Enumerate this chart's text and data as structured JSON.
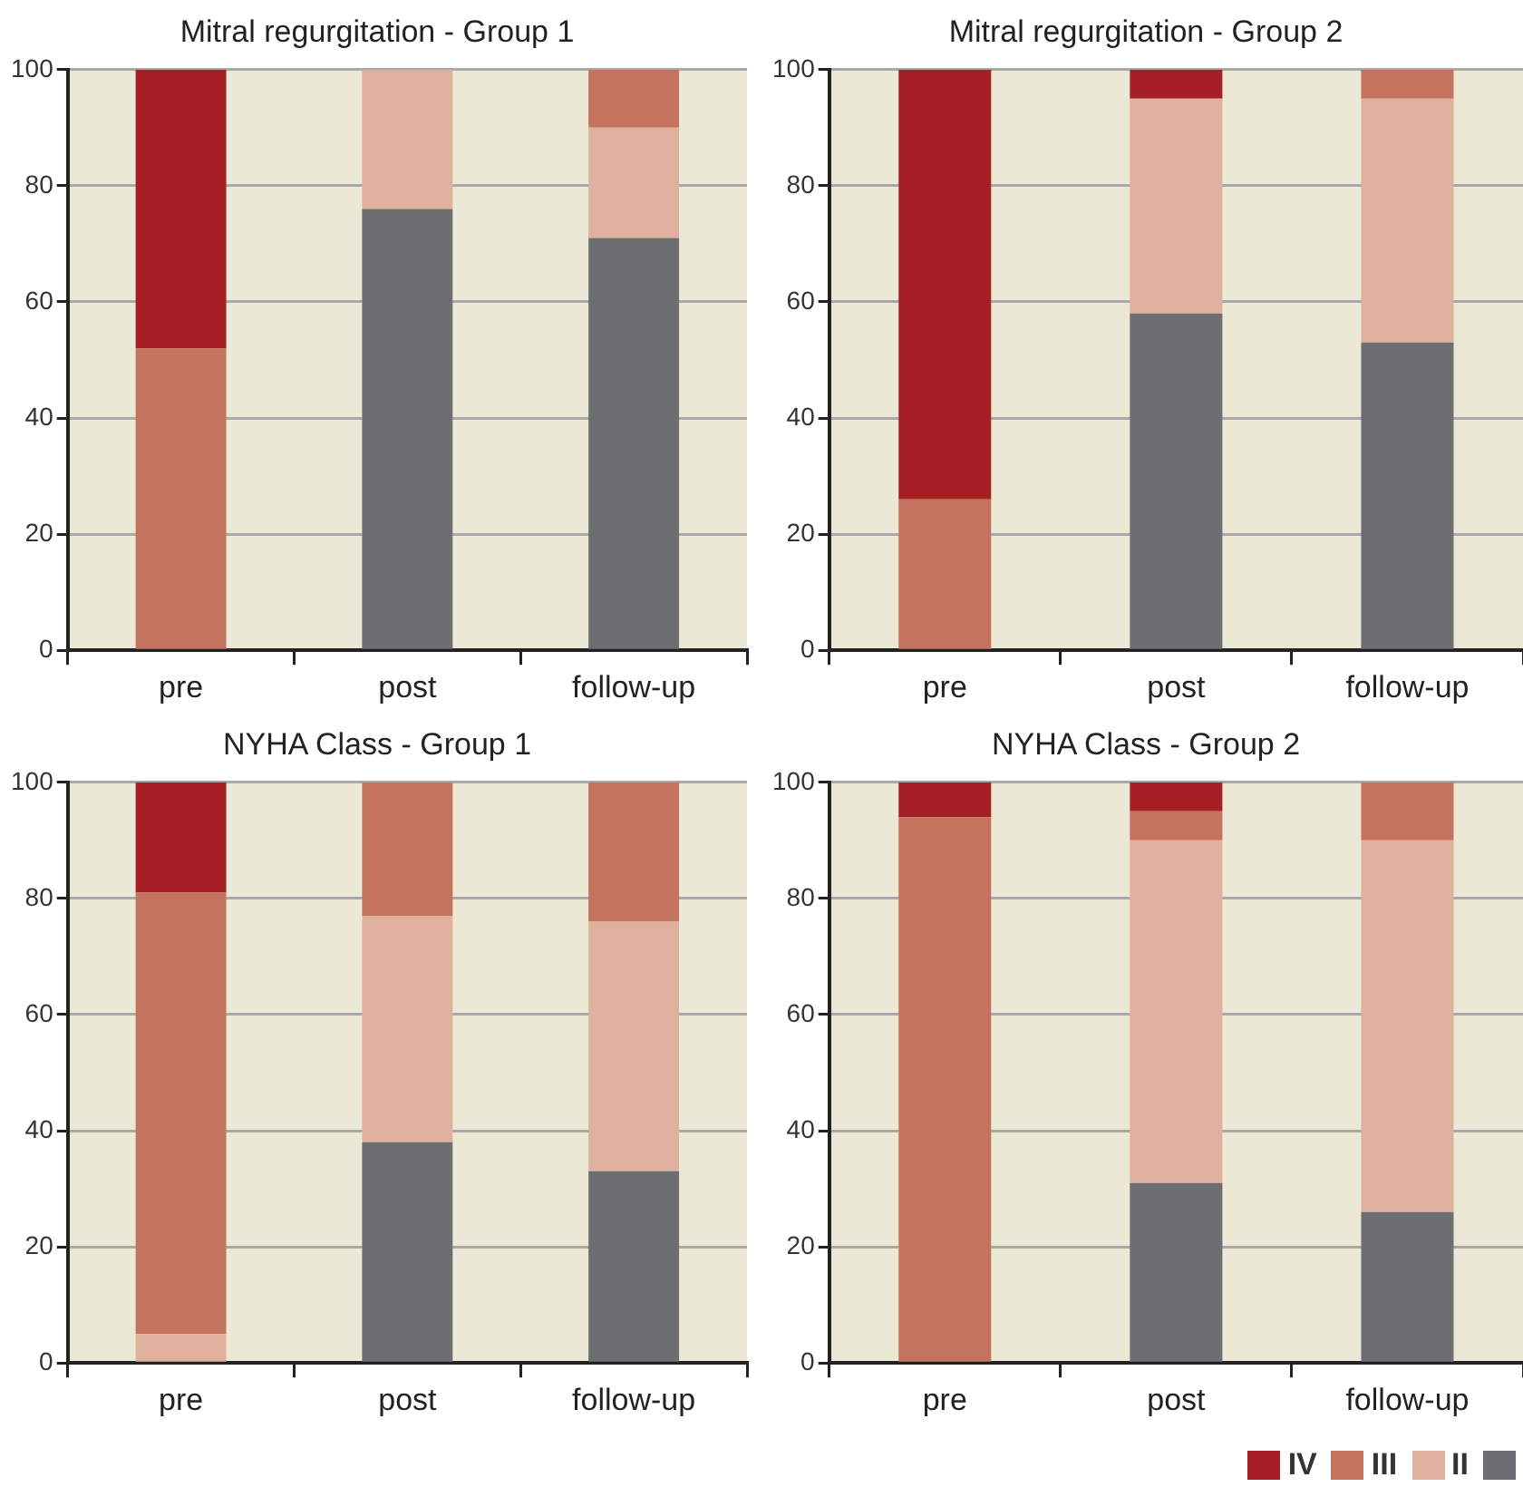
{
  "chart_data": [
    {
      "type": "bar",
      "title": "Mitral regurgitation - Group 1",
      "categories": [
        "pre",
        "post",
        "follow-up"
      ],
      "stacked": true,
      "ylim": [
        0,
        100
      ],
      "yticks": [
        0,
        20,
        40,
        60,
        80,
        100
      ],
      "grid": "y",
      "series": [
        {
          "color": "#6d6e71",
          "values": [
            0,
            76,
            71
          ]
        },
        {
          "color": "#e0b09e",
          "values": [
            0,
            24,
            19
          ]
        },
        {
          "color": "#c4735e",
          "values": [
            52,
            0,
            10
          ]
        },
        {
          "color": "#a61f24",
          "values": [
            48,
            0,
            0
          ]
        }
      ]
    },
    {
      "type": "bar",
      "title": "Mitral regurgitation - Group 2",
      "categories": [
        "pre",
        "post",
        "follow-up"
      ],
      "stacked": true,
      "ylim": [
        0,
        100
      ],
      "yticks": [
        0,
        20,
        40,
        60,
        80,
        100
      ],
      "grid": "y",
      "series": [
        {
          "color": "#6d6e71",
          "values": [
            0,
            58,
            53
          ]
        },
        {
          "color": "#e0b09e",
          "values": [
            0,
            37,
            42
          ]
        },
        {
          "color": "#c4735e",
          "values": [
            26,
            0,
            5
          ]
        },
        {
          "color": "#a61f24",
          "values": [
            74,
            5,
            0
          ]
        }
      ]
    },
    {
      "type": "bar",
      "title": "NYHA Class - Group 1",
      "categories": [
        "pre",
        "post",
        "follow-up"
      ],
      "stacked": true,
      "ylim": [
        0,
        100
      ],
      "yticks": [
        0,
        20,
        40,
        60,
        80,
        100
      ],
      "grid": "y",
      "series": [
        {
          "color": "#6d6e71",
          "values": [
            0,
            38,
            33
          ]
        },
        {
          "color": "#e0b09e",
          "values": [
            5,
            39,
            43
          ]
        },
        {
          "color": "#c4735e",
          "values": [
            76,
            23,
            24
          ]
        },
        {
          "color": "#a61f24",
          "values": [
            19,
            0,
            0
          ]
        }
      ]
    },
    {
      "type": "bar",
      "title": "NYHA Class - Group 2",
      "categories": [
        "pre",
        "post",
        "follow-up"
      ],
      "stacked": true,
      "ylim": [
        0,
        100
      ],
      "yticks": [
        0,
        20,
        40,
        60,
        80,
        100
      ],
      "grid": "y",
      "legend": "bottom right",
      "series": [
        {
          "color": "#6d6e71",
          "values": [
            0,
            31,
            26
          ]
        },
        {
          "name": "II",
          "color": "#e0b09e",
          "values": [
            0,
            59,
            64
          ]
        },
        {
          "name": "III",
          "color": "#c4735e",
          "values": [
            94,
            5,
            10
          ]
        },
        {
          "name": "IV",
          "color": "#a61f24",
          "values": [
            6,
            5,
            0
          ]
        }
      ]
    }
  ]
}
